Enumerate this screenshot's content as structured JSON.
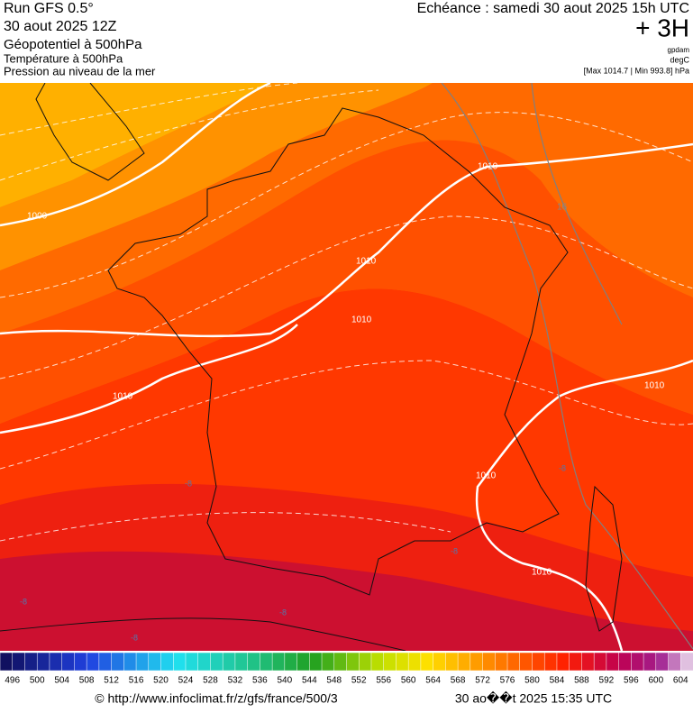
{
  "header": {
    "run": "Run GFS 0.5°",
    "date": "30 aout 2025 12Z",
    "title": "Géopotentiel à 500hPa",
    "line2": "Température à 500hPa",
    "line3": "Pression au niveau de la mer"
  },
  "forecast": {
    "echeance": "Echéance : samedi 30 aout 2025 15h UTC",
    "offset": "+ 3H",
    "unit1": "gpdam",
    "unit2": "degC",
    "range": "[Max 1014.7 | Min 993.8] hPa"
  },
  "isobar_labels": [
    "1000",
    "1010",
    "1010",
    "1010",
    "1010",
    "1010",
    "1010",
    "1010"
  ],
  "isotherm_labels": [
    "16",
    "-8",
    "-8",
    "-8",
    "-8",
    "-8",
    "-8"
  ],
  "scale": {
    "labels": [
      496,
      500,
      504,
      508,
      512,
      516,
      520,
      524,
      528,
      532,
      536,
      540,
      544,
      548,
      552,
      556,
      560,
      564,
      568,
      572,
      576,
      580,
      584,
      588,
      592,
      596,
      600,
      604
    ]
  },
  "footer": {
    "url": "© http://www.infoclimat.fr/z/gfs/france/500/3",
    "time": "30 ao��t 2025 15:35 UTC"
  }
}
